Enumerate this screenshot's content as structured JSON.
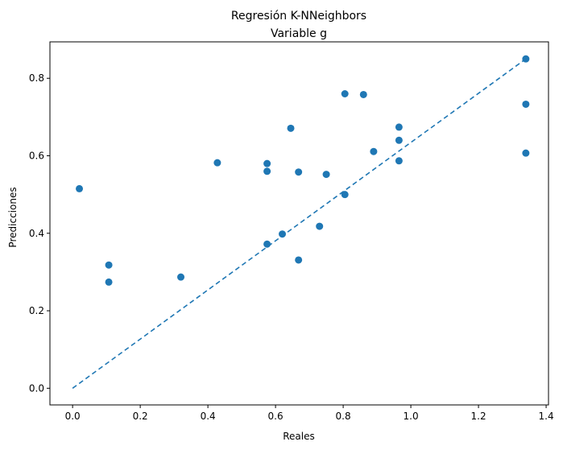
{
  "chart_data": {
    "type": "scatter",
    "title": "Regresión K-NNeighbors",
    "subtitle": "Variable g",
    "xlabel": "Reales",
    "ylabel": "Predicciones",
    "xlim": [
      -0.067,
      1.407
    ],
    "ylim": [
      -0.043,
      0.894
    ],
    "xticks": [
      0.0,
      0.2,
      0.4,
      0.6,
      0.8,
      1.0,
      1.2,
      1.4
    ],
    "xtick_labels": [
      "0.0",
      "0.2",
      "0.4",
      "0.6",
      "0.8",
      "1.0",
      "1.2",
      "1.4"
    ],
    "yticks": [
      0.0,
      0.2,
      0.4,
      0.6,
      0.8
    ],
    "ytick_labels": [
      "0.0",
      "0.2",
      "0.4",
      "0.6",
      "0.8"
    ],
    "grid": false,
    "marker_color": "#1f77b4",
    "reference_line": {
      "x": [
        0.0,
        1.34
      ],
      "y": [
        0.0,
        0.85
      ],
      "style": "dashed",
      "color": "#1f77b4"
    },
    "points": [
      {
        "x": 0.02,
        "y": 0.515
      },
      {
        "x": 0.107,
        "y": 0.318
      },
      {
        "x": 0.107,
        "y": 0.274
      },
      {
        "x": 0.32,
        "y": 0.287
      },
      {
        "x": 0.428,
        "y": 0.582
      },
      {
        "x": 0.575,
        "y": 0.58
      },
      {
        "x": 0.575,
        "y": 0.56
      },
      {
        "x": 0.575,
        "y": 0.372
      },
      {
        "x": 0.62,
        "y": 0.398
      },
      {
        "x": 0.645,
        "y": 0.671
      },
      {
        "x": 0.668,
        "y": 0.558
      },
      {
        "x": 0.668,
        "y": 0.331
      },
      {
        "x": 0.73,
        "y": 0.418
      },
      {
        "x": 0.75,
        "y": 0.552
      },
      {
        "x": 0.805,
        "y": 0.76
      },
      {
        "x": 0.805,
        "y": 0.5
      },
      {
        "x": 0.86,
        "y": 0.758
      },
      {
        "x": 0.89,
        "y": 0.611
      },
      {
        "x": 0.965,
        "y": 0.674
      },
      {
        "x": 0.965,
        "y": 0.64
      },
      {
        "x": 0.965,
        "y": 0.587
      },
      {
        "x": 1.34,
        "y": 0.85
      },
      {
        "x": 1.34,
        "y": 0.733
      },
      {
        "x": 1.34,
        "y": 0.607
      }
    ]
  }
}
